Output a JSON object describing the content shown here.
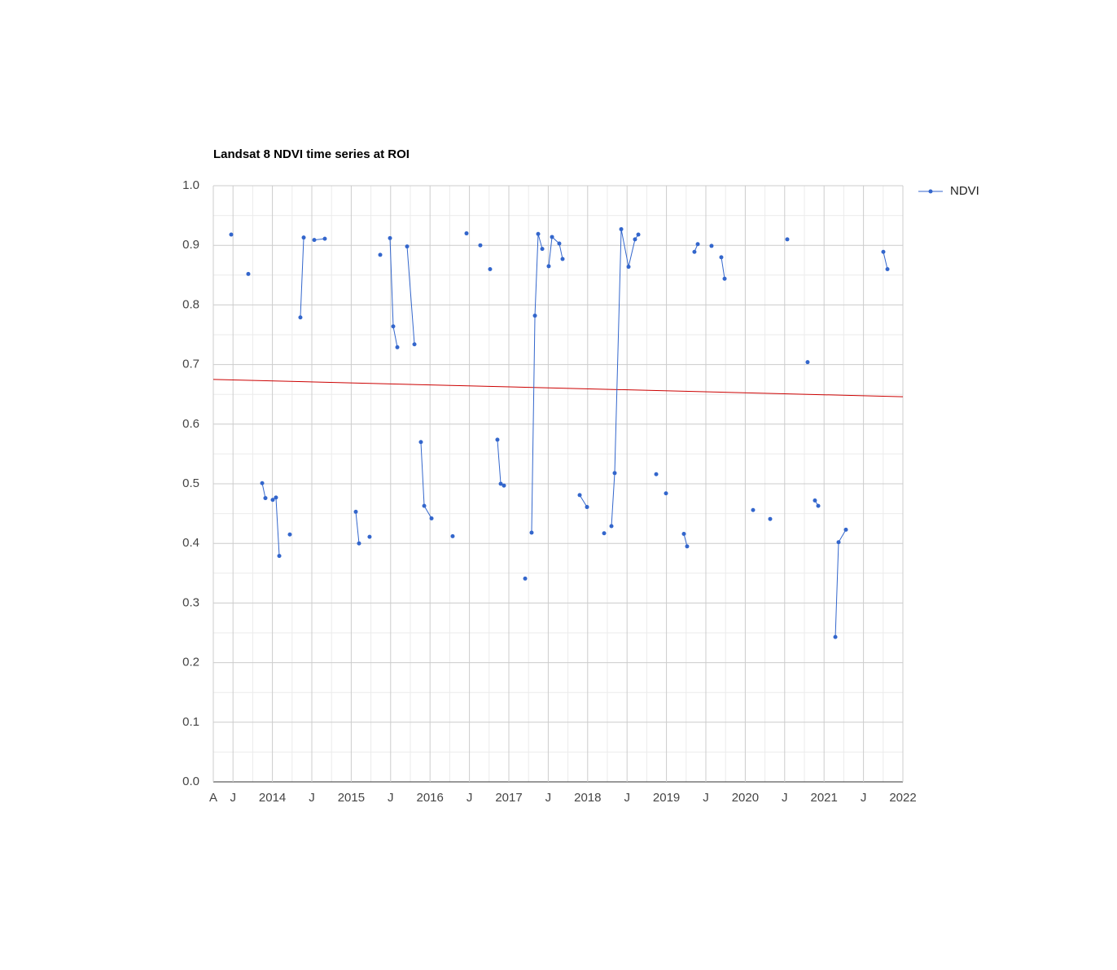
{
  "chart_data": {
    "type": "line",
    "title": "Landsat 8 NDVI time series at ROI",
    "series": [
      {
        "name": "NDVI",
        "color": "#3366cc",
        "x": [
          2013.477,
          null,
          2013.694,
          null,
          2013.87,
          2013.911,
          null,
          2014.004,
          2014.045,
          2014.087,
          null,
          2014.221,
          null,
          2014.355,
          2014.397,
          null,
          2014.531,
          2014.665,
          null,
          2015.058,
          2015.099,
          null,
          2015.233,
          null,
          2015.368,
          null,
          2015.492,
          2015.533,
          2015.585,
          null,
          2015.709,
          2015.802,
          null,
          2015.884,
          2015.926,
          2016.019,
          null,
          2016.287,
          null,
          2016.463,
          null,
          2016.638,
          null,
          2016.762,
          null,
          2016.855,
          2016.897,
          2016.938,
          null,
          2017.207,
          null,
          2017.289,
          2017.331,
          2017.372,
          2017.424,
          null,
          2017.506,
          2017.548,
          2017.64,
          2017.682,
          null,
          2017.899,
          2017.992,
          null,
          2018.209,
          null,
          2018.302,
          2018.343,
          2018.426,
          2018.519,
          2018.601,
          2018.643,
          null,
          2018.87,
          null,
          2018.994,
          null,
          2019.221,
          2019.262,
          null,
          2019.355,
          2019.397,
          null,
          2019.572,
          null,
          2019.696,
          2019.738,
          null,
          2020.099,
          null,
          2020.316,
          null,
          2020.533,
          null,
          2020.791,
          null,
          2020.884,
          2020.926,
          null,
          2021.143,
          2021.184,
          2021.277,
          null,
          2021.752,
          2021.804
        ],
        "values": [
          0.918,
          null,
          0.852,
          null,
          0.501,
          0.476,
          null,
          0.473,
          0.477,
          0.379,
          null,
          0.415,
          null,
          0.779,
          0.913,
          null,
          0.909,
          0.911,
          null,
          0.453,
          0.4,
          null,
          0.411,
          null,
          0.884,
          null,
          0.912,
          0.764,
          0.729,
          null,
          0.898,
          0.734,
          null,
          0.57,
          0.463,
          0.442,
          null,
          0.412,
          null,
          0.92,
          null,
          0.9,
          null,
          0.86,
          null,
          0.574,
          0.5,
          0.497,
          null,
          0.341,
          null,
          0.418,
          0.782,
          0.919,
          0.894,
          null,
          0.865,
          0.914,
          0.903,
          0.877,
          null,
          0.481,
          0.461,
          null,
          0.417,
          null,
          0.429,
          0.518,
          0.927,
          0.864,
          0.91,
          0.918,
          null,
          0.516,
          null,
          0.484,
          null,
          0.416,
          0.395,
          null,
          0.889,
          0.902,
          null,
          0.899,
          null,
          0.88,
          0.844,
          null,
          0.456,
          null,
          0.441,
          null,
          0.91,
          null,
          0.704,
          null,
          0.472,
          0.463,
          null,
          0.243,
          0.402,
          0.423,
          null,
          0.889,
          0.86
        ]
      }
    ],
    "trendline": {
      "color": "#cc0000",
      "x": [
        2013.25,
        2022
      ],
      "values": [
        0.675,
        0.646
      ]
    },
    "xlim": [
      2013.25,
      2022
    ],
    "xticks": [
      {
        "value": 2013.25,
        "label": "A"
      },
      {
        "value": 2013.5,
        "label": "J"
      },
      2014,
      {
        "value": 2014.5,
        "label": "J"
      },
      2015,
      {
        "value": 2015.5,
        "label": "J"
      },
      2016,
      {
        "value": 2016.5,
        "label": "J"
      },
      2017,
      {
        "value": 2017.5,
        "label": "J"
      },
      2018,
      {
        "value": 2018.5,
        "label": "J"
      },
      2019,
      {
        "value": 2019.5,
        "label": "J"
      },
      2020,
      {
        "value": 2020.5,
        "label": "J"
      },
      2021,
      {
        "value": 2021.5,
        "label": "J"
      },
      2022
    ],
    "x_minor_ticks": [
      2013.75,
      2014.25,
      2014.75,
      2015.25,
      2015.75,
      2016.25,
      2016.75,
      2017.25,
      2017.75,
      2018.25,
      2018.75,
      2019.25,
      2019.75,
      2020.25,
      2020.75,
      2021.25,
      2021.75
    ],
    "ylim": [
      0,
      1
    ],
    "yticks": [
      {
        "value": 0,
        "label": "0.0"
      },
      0.1,
      0.2,
      0.3,
      0.4,
      0.5,
      0.6,
      0.7,
      0.8,
      0.9,
      {
        "value": 1,
        "label": "1.0"
      }
    ],
    "y_minor_ticks": [
      0.05,
      0.15,
      0.25,
      0.35,
      0.45,
      0.55,
      0.65,
      0.75,
      0.85,
      0.95
    ],
    "grid": true,
    "legend": "right"
  }
}
